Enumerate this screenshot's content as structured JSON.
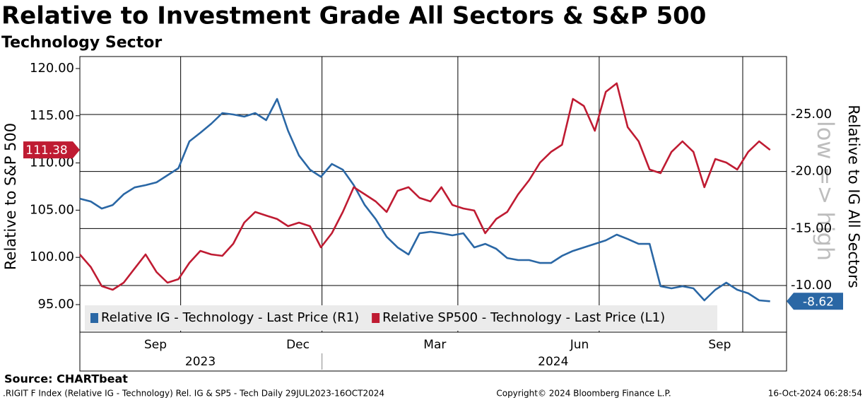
{
  "chart_data": {
    "type": "line",
    "title": "Relative to Investment Grade All Sectors & S&P 500",
    "subtitle": "Technology Sector",
    "y_label": "Relative to S&P 500",
    "y2_label": "Relative to IG All Sectors",
    "y2_annotation": "low => high",
    "source": "Source: CHARTbeat",
    "footer_left": ".RIGIT F Index (Relative IG - Technology) Rel. IG & SP5 - Tech  Daily 29JUL2023-16OCT2024",
    "footer_center": "Copyright© 2024 Bloomberg Finance L.P.",
    "footer_right": "16-Oct-2024 06:28:54",
    "categories": [
      null,
      null,
      null,
      null,
      null,
      null,
      null,
      null,
      null,
      null,
      null,
      null,
      null,
      null,
      null,
      null,
      null,
      null,
      null,
      null,
      null,
      null,
      null,
      null,
      null,
      null,
      null,
      null,
      null,
      null,
      null,
      null,
      null,
      null,
      null,
      null,
      null,
      null,
      null,
      null,
      null,
      null,
      null,
      null,
      null,
      null,
      null,
      null,
      null,
      null,
      null,
      null,
      null,
      null,
      null,
      null,
      null,
      null,
      null,
      null,
      null,
      null,
      null,
      null
    ],
    "xlim": [
      0,
      64.5
    ],
    "xticks": [
      {
        "value": 6.9,
        "label": "Sep"
      },
      {
        "value": 19.9,
        "label": "Dec"
      },
      {
        "value": 32.4,
        "label": "Mar"
      },
      {
        "value": 45.6,
        "label": "Jun"
      },
      {
        "value": 58.4,
        "label": "Sep"
      }
    ],
    "year_ticks": [
      {
        "value": 11,
        "label": "2023"
      },
      {
        "value": 43.2,
        "label": "2024"
      }
    ],
    "xgrid": [
      9.2,
      22.1,
      34.5,
      47.4,
      60.5
    ],
    "ylim": [
      92.08,
      121.27
    ],
    "yticks": [
      {
        "value": 95,
        "label": "95.00"
      },
      {
        "value": 100,
        "label": "100.00"
      },
      {
        "value": 105,
        "label": "105.00"
      },
      {
        "value": 110,
        "label": "110.00"
      },
      {
        "value": 115,
        "label": "115.00"
      },
      {
        "value": 120,
        "label": "120.00"
      }
    ],
    "y2lim": [
      -5.91,
      -30.08
    ],
    "y2ticks": [
      {
        "value": -10,
        "label": "-10.00"
      },
      {
        "value": -15,
        "label": "-15.00"
      },
      {
        "value": -20,
        "label": "-20.00"
      },
      {
        "value": -25,
        "label": "-25.00"
      }
    ],
    "grid": true,
    "series": [
      {
        "name": "Relative IG - Technology - Last Price (R1)",
        "color": "#2a67a5",
        "axis": "y2",
        "values": [
          -17.62,
          -17.37,
          -16.75,
          -17.06,
          -18.0,
          -18.6,
          -18.8,
          -19.05,
          -19.67,
          -20.29,
          -22.64,
          -23.39,
          -24.19,
          -25.12,
          -25.0,
          -24.81,
          -25.12,
          -24.5,
          -26.36,
          -23.57,
          -21.4,
          -20.16,
          -19.54,
          -20.66,
          -20.16,
          -18.8,
          -17.06,
          -15.82,
          -14.27,
          -13.34,
          -12.72,
          -14.58,
          -14.71,
          -14.58,
          -14.4,
          -14.58,
          -13.34,
          -13.65,
          -13.22,
          -12.41,
          -12.23,
          -12.23,
          -11.98,
          -11.98,
          -12.6,
          -13.03,
          -13.34,
          -13.65,
          -13.96,
          -14.46,
          -14.08,
          -13.65,
          -13.65,
          -9.94,
          -9.75,
          -9.94,
          -9.75,
          -8.7,
          -9.63,
          -10.25,
          -9.63,
          -9.32,
          -8.7,
          -8.62
        ]
      },
      {
        "name": "Relative SP500 - Technology - Last Price (L1)",
        "color": "#bf1b32",
        "axis": "y",
        "values": [
          100.31,
          98.97,
          96.95,
          96.57,
          97.32,
          98.82,
          100.31,
          98.44,
          97.32,
          97.69,
          99.42,
          100.69,
          100.31,
          100.16,
          101.44,
          103.68,
          104.81,
          104.43,
          104.06,
          103.31,
          103.68,
          103.31,
          101.06,
          102.56,
          104.81,
          107.43,
          106.68,
          105.93,
          104.81,
          107.05,
          107.43,
          106.3,
          105.93,
          107.43,
          105.55,
          105.18,
          104.96,
          102.56,
          104.06,
          104.81,
          106.68,
          108.17,
          110.04,
          111.17,
          111.92,
          116.78,
          116.03,
          113.41,
          117.53,
          118.43,
          113.79,
          112.29,
          109.3,
          108.92,
          111.17,
          112.29,
          111.17,
          107.43,
          110.42,
          110.04,
          109.3,
          111.17,
          112.29,
          111.38
        ]
      }
    ]
  }
}
